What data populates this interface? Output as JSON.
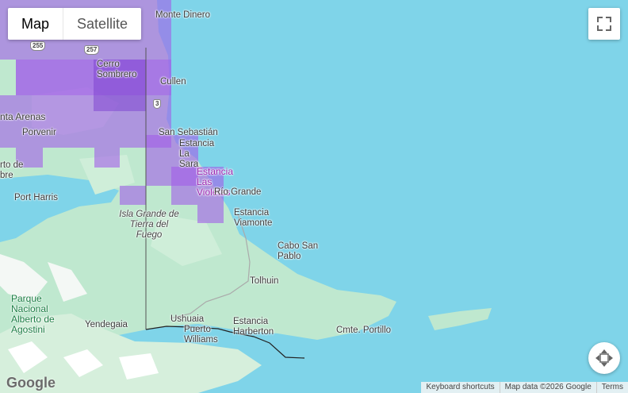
{
  "controls": {
    "map_type": [
      "Map",
      "Satellite"
    ]
  },
  "places": [
    "Monte Dinero",
    "Cerro Sombrero",
    "Cullen",
    "nta Arenas",
    "Porvenir",
    "San Sebastián",
    "Estancia La Sara",
    "rto de bre",
    "Estancia Las Violetas",
    "Río Grande",
    "Port Harris",
    "Isla Grande de Tierra del Fuego",
    "Estancia Viamonte",
    "Cabo San Pablo",
    "Tolhuin",
    "Parque Nacional Alberto de Agostini",
    "Yendegaia",
    "Ushuaia",
    "Estancia Harberton",
    "Puerto Williams",
    "Cmte. Portillo"
  ],
  "road_shields": [
    "255",
    "257",
    "3"
  ],
  "footer": {
    "brand": "Google",
    "links": [
      "Keyboard shortcuts",
      "Map data ©2026 Google",
      "Terms"
    ]
  }
}
